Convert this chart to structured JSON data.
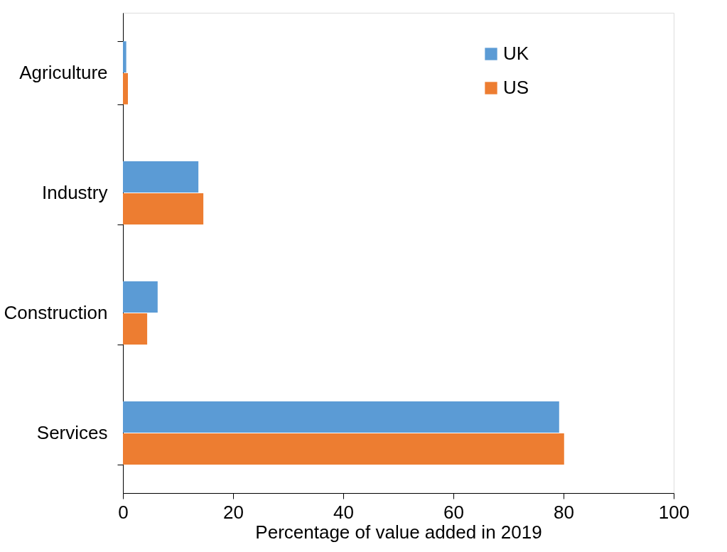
{
  "chart_data": {
    "type": "bar",
    "orientation": "horizontal",
    "xlabel": "Percentage of value added in 2019",
    "categories": [
      "Agriculture",
      "Industry",
      "Construction",
      "Services"
    ],
    "series": [
      {
        "name": "UK",
        "color": "#5b9bd5",
        "values": [
          0.6,
          13.7,
          6.3,
          79.2
        ]
      },
      {
        "name": "US",
        "color": "#ed7d31",
        "values": [
          0.9,
          14.6,
          4.4,
          80.1
        ]
      }
    ],
    "xlim": [
      0,
      100
    ],
    "xticks": [
      0,
      20,
      40,
      60,
      80,
      100
    ],
    "grid": false,
    "legend": "top right"
  }
}
